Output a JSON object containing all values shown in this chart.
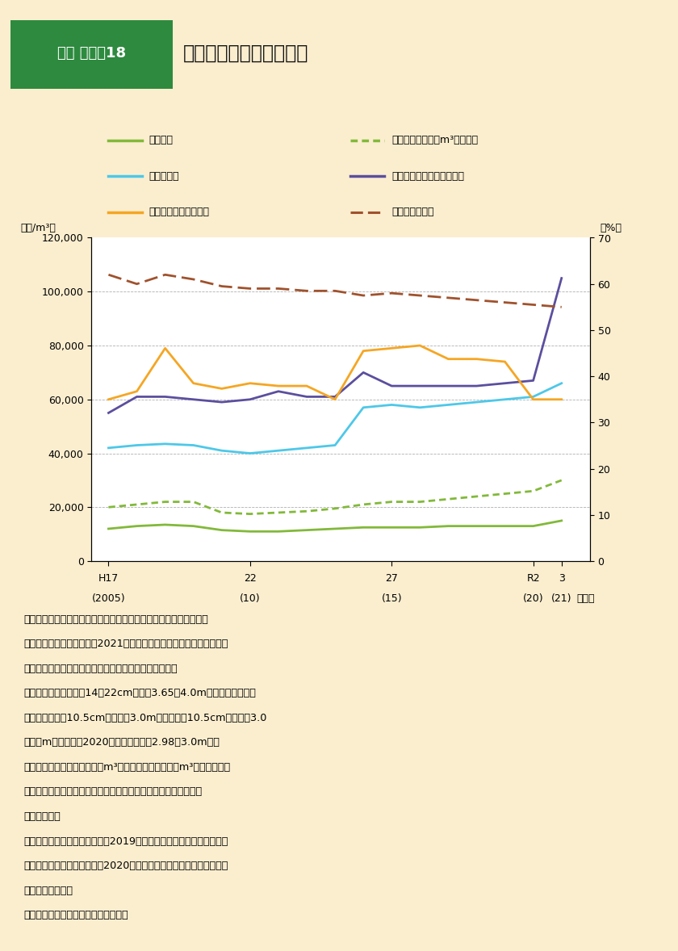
{
  "bg_color": "#fbeecf",
  "plot_bg": "#ffffff",
  "years": [
    2005,
    2006,
    2007,
    2008,
    2009,
    2010,
    2011,
    2012,
    2013,
    2014,
    2015,
    2016,
    2017,
    2018,
    2019,
    2020,
    2021
  ],
  "sugi_log": [
    12000,
    13000,
    13500,
    13000,
    11500,
    11000,
    11000,
    11500,
    12000,
    12500,
    12500,
    12500,
    13000,
    13000,
    13000,
    13000,
    15000
  ],
  "sugi_log_per_m3": [
    20000,
    21000,
    22000,
    22000,
    18000,
    17500,
    18000,
    18500,
    19500,
    21000,
    22000,
    22000,
    23000,
    24000,
    25000,
    26000,
    30000
  ],
  "sugi_seihin": [
    42000,
    43000,
    43500,
    43000,
    41000,
    40000,
    41000,
    42000,
    43000,
    57000,
    58000,
    57000,
    58000,
    59000,
    60000,
    61000,
    66000
  ],
  "sugi_seihin_kansou": [
    55000,
    61000,
    61000,
    60000,
    59000,
    60000,
    63000,
    61000,
    61000,
    70000,
    65000,
    65000,
    65000,
    65000,
    66000,
    67000,
    105000
  ],
  "white_wood": [
    60000,
    63000,
    79000,
    66000,
    64000,
    66000,
    65000,
    65000,
    60000,
    78000,
    79000,
    80000,
    75000,
    75000,
    74000,
    60000,
    60000
  ],
  "ayumari": [
    62.0,
    60.0,
    62.0,
    61.0,
    59.5,
    59.0,
    59.0,
    58.5,
    58.5,
    57.5,
    58.0,
    57.5,
    57.0,
    56.5,
    56.0,
    55.5,
    55.0
  ],
  "colors": {
    "sugi_log": "#82b93a",
    "sugi_log_per_m3": "#82b93a",
    "sugi_seihin": "#4dc8e8",
    "sugi_seihin_kansou": "#5b4f9e",
    "white_wood": "#f5a623",
    "ayumari": "#a0522d"
  },
  "left_yticks": [
    0,
    20000,
    40000,
    60000,
    80000,
    100000,
    120000
  ],
  "right_yticks": [
    0,
    10,
    20,
    30,
    40,
    50,
    60,
    70
  ],
  "xtick_years": [
    2005,
    2010,
    2015,
    2020,
    2021
  ],
  "xtick_main": [
    "H17",
    "22",
    "27",
    "R2",
    "3"
  ],
  "xtick_sub": [
    "(2005)",
    "(10)",
    "(15)",
    "(20)",
    "(21)"
  ],
  "legend_entries": [
    {
      "label": "スギ原木",
      "color": "#82b93a",
      "style": "solid",
      "col": 0
    },
    {
      "label": "スギ原木（製材１m³当たり）",
      "color": "#82b93a",
      "style": "dotted",
      "col": 1
    },
    {
      "label": "スギ製材品",
      "color": "#4dc8e8",
      "style": "solid",
      "col": 0
    },
    {
      "label": "スギ製材品（人工乾燥材）",
      "color": "#5b4f9e",
      "style": "solid",
      "col": 1
    },
    {
      "label": "ホワイトウッド集成材",
      "color": "#f5a623",
      "style": "solid",
      "col": 0
    },
    {
      "label": "歩留り（右軸）",
      "color": "#a0522d",
      "style": "dashed",
      "col": 1
    }
  ],
  "note_lines": [
    "注１：歩留りは、製材工場における原木入荷量に対する製材品出荷",
    "　　　量の割合。令和３（2021）年の歩留りは、同年における月別の",
    "　　　原木入荷量及び製材品出荷量の合計により計算。",
    "　２：スギ原木は、弗14～22cm、長こ3.65～4.0mの中丸太。スギ製",
    "　　　材品は、10.5cm角、長こ3.0m。集成材は10.5cm角、長こ3.0",
    "　　　m（令和２（2020）年以降、長こ2.98～3.0m）。",
    "　３：スギ原木価格（製材１m³当たり）は、製材品１m³を製造するた",
    "　　　めに必要な原木の価格（原木価格を歩留りで割ることで試",
    "　　　算）。",
    "　４：集成材価格は、令和元（2019）年までは木材市売市場の取引価",
    "　　　格等であり、令和２（2020）年以降は工場出荷価格であり、連",
    "　　　続しない。",
    "資料：農林水産省「木材需給報告書」"
  ]
}
